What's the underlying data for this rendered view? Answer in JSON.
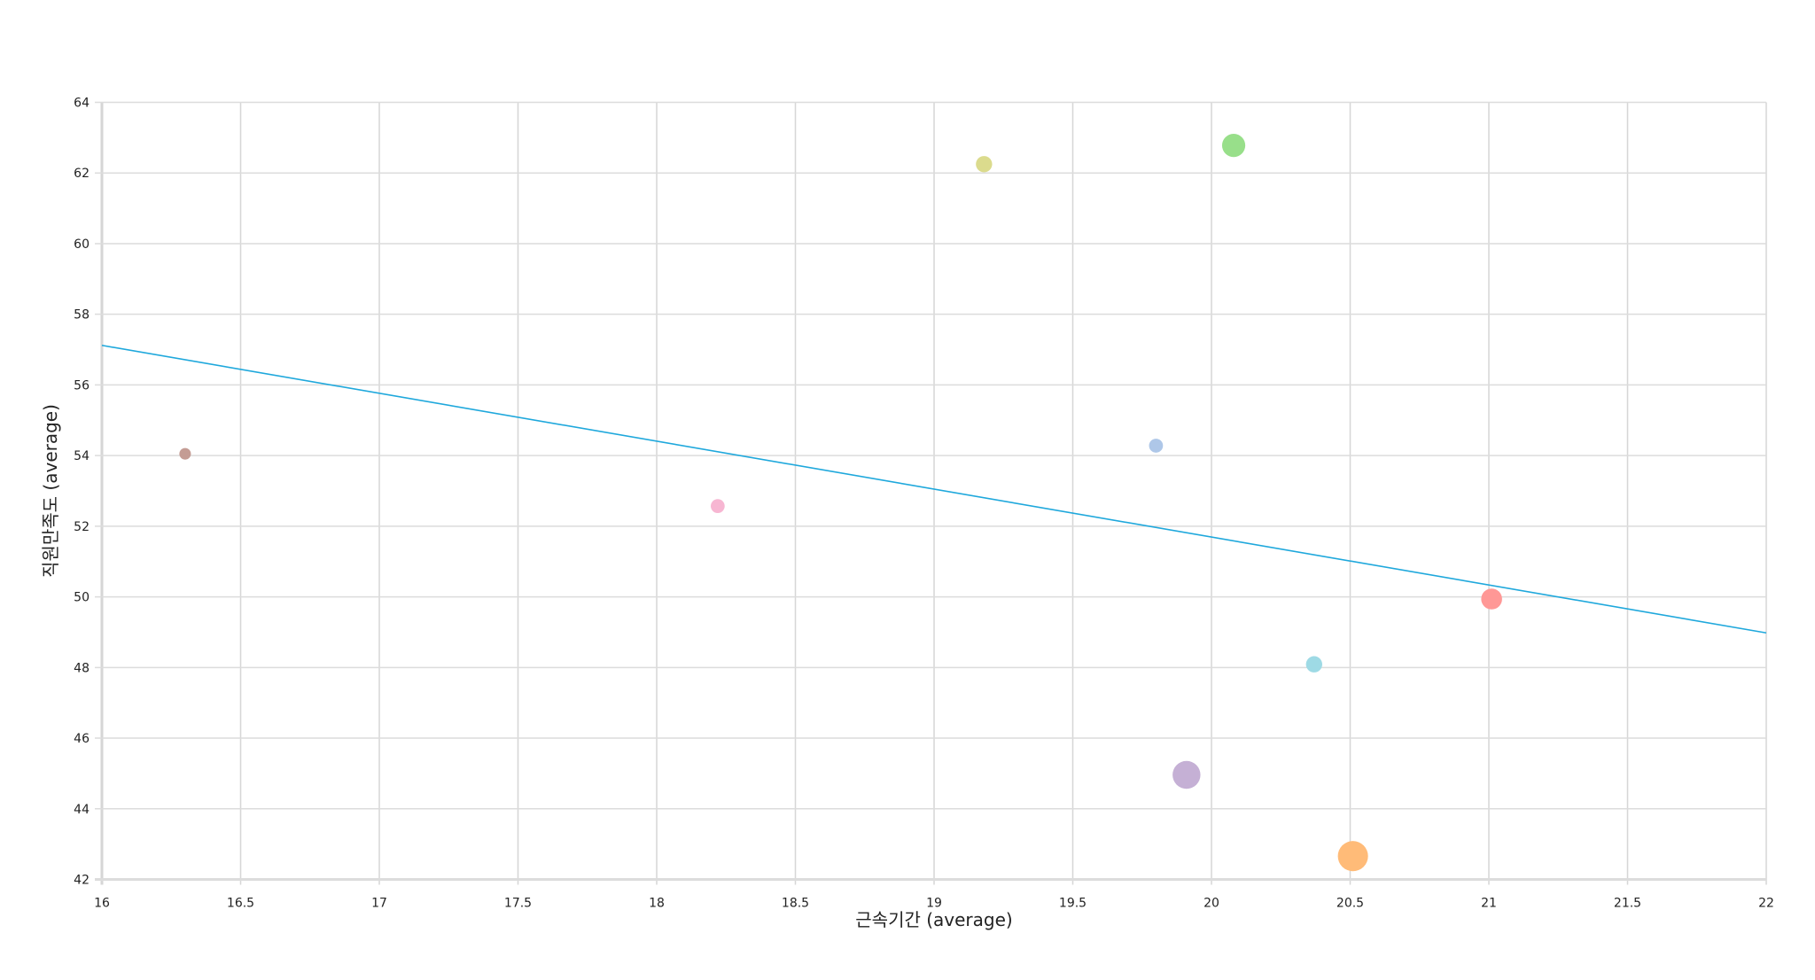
{
  "chart_data": {
    "type": "scatter",
    "title": "",
    "xlabel": "근속기간 (average)",
    "ylabel": "직원만족도 (average)",
    "xlim": [
      16,
      22
    ],
    "ylim": [
      42,
      64
    ],
    "xticks": [
      "16",
      "16.5",
      "17",
      "17.5",
      "18",
      "18.5",
      "19",
      "19.5",
      "20",
      "20.5",
      "21",
      "21.5",
      "22"
    ],
    "yticks": [
      "42",
      "44",
      "46",
      "48",
      "50",
      "52",
      "54",
      "56",
      "58",
      "60",
      "62",
      "64"
    ],
    "grid": true,
    "points": [
      {
        "x": 16.3,
        "y": 54.05,
        "size": 5,
        "color": "#c49c94"
      },
      {
        "x": 18.22,
        "y": 52.57,
        "size": 6,
        "color": "#f7b6d2"
      },
      {
        "x": 19.18,
        "y": 62.25,
        "size": 7,
        "color": "#dbdb8d"
      },
      {
        "x": 19.8,
        "y": 54.28,
        "size": 6,
        "color": "#aec7e8"
      },
      {
        "x": 19.91,
        "y": 44.96,
        "size": 12,
        "color": "#c5b0d5"
      },
      {
        "x": 20.08,
        "y": 62.78,
        "size": 10,
        "color": "#98df8a"
      },
      {
        "x": 20.37,
        "y": 48.09,
        "size": 7,
        "color": "#9edae5"
      },
      {
        "x": 20.51,
        "y": 42.66,
        "size": 13,
        "color": "#ffbb78"
      },
      {
        "x": 21.01,
        "y": 49.94,
        "size": 9,
        "color": "#ff9896"
      }
    ],
    "trendline": {
      "x": [
        16,
        22
      ],
      "y": [
        57.12,
        48.98
      ],
      "color": "#1fa8dc"
    }
  }
}
